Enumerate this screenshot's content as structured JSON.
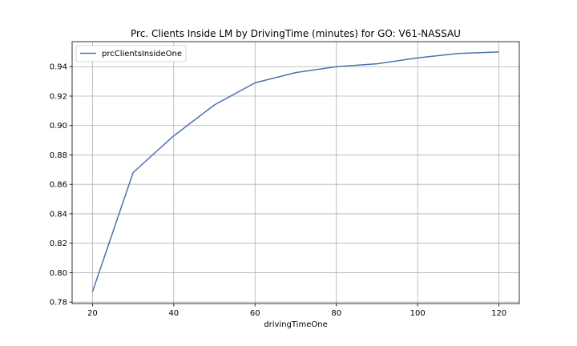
{
  "chart_data": {
    "type": "line",
    "title": "Prc. Clients Inside LM by DrivingTime (minutes) for GO: V61-NASSAU",
    "xlabel": "drivingTimeOne",
    "ylabel": "",
    "x": [
      20,
      30,
      40,
      50,
      60,
      70,
      80,
      90,
      100,
      110,
      120
    ],
    "series": [
      {
        "name": "prcClientsInsideOne",
        "values": [
          0.787,
          0.868,
          0.893,
          0.914,
          0.929,
          0.936,
          0.94,
          0.942,
          0.946,
          0.949,
          0.95
        ],
        "color": "#4c72b0"
      }
    ],
    "xlim": [
      15,
      125
    ],
    "ylim": [
      0.779,
      0.957
    ],
    "xticks": [
      20,
      40,
      60,
      80,
      100,
      120
    ],
    "yticks": [
      0.78,
      0.8,
      0.82,
      0.84,
      0.86,
      0.88,
      0.9,
      0.92,
      0.94
    ],
    "ytick_labels": [
      "0.78",
      "0.80",
      "0.82",
      "0.84",
      "0.86",
      "0.88",
      "0.90",
      "0.92",
      "0.94"
    ],
    "grid": true,
    "legend_position": "top-left"
  }
}
